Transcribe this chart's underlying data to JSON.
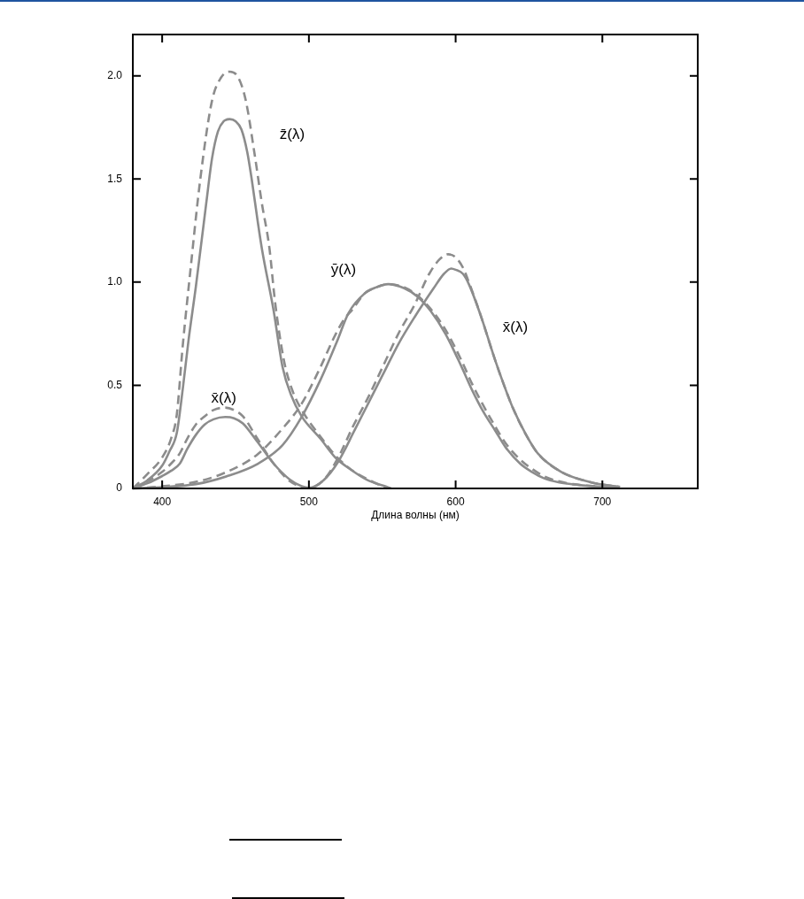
{
  "chart_data": {
    "type": "line",
    "xlabel": "Длина волны (нм)",
    "xlim": [
      380,
      765
    ],
    "xticks": [
      400,
      500,
      600,
      700
    ],
    "ylim": [
      0,
      2.2
    ],
    "yticks": [
      0,
      0.5,
      {
        "value": 1,
        "label": "1.0"
      },
      1.5,
      {
        "value": 2,
        "label": "2.0"
      }
    ],
    "grid": false,
    "legend": false,
    "marker": "none",
    "series": [
      {
        "color": "#8c8c8c",
        "line_style": "solid",
        "x": [
          380,
          390,
          400,
          406,
          412,
          417,
          423,
          429,
          435,
          443,
          449,
          455,
          465,
          476,
          487,
          495,
          500,
          510,
          520,
          531,
          541,
          551,
          561,
          572,
          585,
          592,
          597,
          600,
          605,
          609,
          617,
          627,
          633,
          639,
          648,
          656,
          672,
          692,
          712
        ],
        "values": [
          0,
          0.025,
          0.06,
          0.085,
          0.12,
          0.19,
          0.26,
          0.31,
          0.335,
          0.346,
          0.34,
          0.315,
          0.225,
          0.12,
          0.043,
          0.011,
          0.003,
          0.04,
          0.13,
          0.28,
          0.42,
          0.56,
          0.7,
          0.83,
          0.97,
          1.04,
          1.066,
          1.06,
          1.04,
          0.99,
          0.84,
          0.62,
          0.5,
          0.39,
          0.26,
          0.17,
          0.08,
          0.03,
          0.007
        ]
      },
      {
        "color": "#8c8c8c",
        "line_style": "solid",
        "x": [
          380,
          400,
          423,
          444,
          465,
          482,
          495,
          508,
          519,
          527,
          538,
          546,
          554,
          565,
          574,
          583,
          593,
          604,
          611,
          619,
          627,
          634,
          644,
          652,
          660,
          670,
          680,
          695,
          710
        ],
        "values": [
          0,
          0.006,
          0.021,
          0.059,
          0.119,
          0.21,
          0.346,
          0.528,
          0.71,
          0.85,
          0.945,
          0.975,
          0.99,
          0.97,
          0.93,
          0.86,
          0.75,
          0.59,
          0.48,
          0.37,
          0.28,
          0.2,
          0.12,
          0.08,
          0.05,
          0.03,
          0.02,
          0.01,
          0.003
        ]
      },
      {
        "color": "#8c8c8c",
        "line_style": "solid",
        "x": [
          380,
          390,
          400,
          405,
          410,
          414,
          418,
          423,
          430,
          434,
          438,
          442,
          446,
          450,
          454,
          458,
          461,
          465,
          468,
          476,
          482,
          488,
          495,
          508,
          518,
          529,
          540,
          551,
          556
        ],
        "values": [
          0,
          0.04,
          0.11,
          0.18,
          0.27,
          0.48,
          0.72,
          0.98,
          1.38,
          1.6,
          1.73,
          1.78,
          1.79,
          1.78,
          1.74,
          1.63,
          1.5,
          1.3,
          1.16,
          0.86,
          0.59,
          0.45,
          0.35,
          0.24,
          0.15,
          0.089,
          0.04,
          0.013,
          0
        ]
      },
      {
        "color": "#8c8c8c",
        "line_style": "dashed",
        "x": [
          380,
          390,
          400,
          406,
          412,
          417,
          423,
          429,
          435,
          443,
          449,
          455,
          465,
          476,
          487,
          495,
          500,
          510,
          520,
          530,
          541,
          551,
          561,
          572,
          582,
          589,
          595,
          600,
          605,
          609,
          617,
          627,
          633,
          639,
          648,
          656,
          672,
          692,
          712
        ],
        "values": [
          0,
          0.035,
          0.08,
          0.12,
          0.17,
          0.24,
          0.31,
          0.35,
          0.38,
          0.392,
          0.38,
          0.35,
          0.24,
          0.12,
          0.035,
          0.008,
          0.003,
          0.04,
          0.15,
          0.3,
          0.45,
          0.6,
          0.75,
          0.89,
          1.04,
          1.11,
          1.135,
          1.12,
          1.07,
          1.0,
          0.84,
          0.62,
          0.5,
          0.39,
          0.26,
          0.17,
          0.08,
          0.03,
          0.007
        ]
      },
      {
        "color": "#8c8c8c",
        "line_style": "dashed",
        "x": [
          380,
          400,
          425,
          444,
          465,
          482,
          495,
          508,
          517,
          524,
          530,
          538,
          546,
          554,
          565,
          574,
          583,
          593,
          604,
          611,
          619,
          627,
          634,
          644,
          652,
          660,
          670,
          680,
          695,
          710
        ],
        "values": [
          0,
          0.01,
          0.035,
          0.08,
          0.165,
          0.29,
          0.41,
          0.59,
          0.73,
          0.82,
          0.87,
          0.945,
          0.975,
          0.99,
          0.975,
          0.935,
          0.87,
          0.77,
          0.62,
          0.51,
          0.4,
          0.3,
          0.22,
          0.14,
          0.095,
          0.06,
          0.035,
          0.021,
          0.01,
          0.003
        ]
      },
      {
        "color": "#8c8c8c",
        "line_style": "dashed",
        "x": [
          380,
          390,
          400,
          406,
          410,
          414,
          419,
          426,
          434,
          440,
          446,
          452,
          457,
          463,
          468,
          473,
          477,
          483,
          489,
          496,
          508,
          518,
          529,
          540,
          553
        ],
        "values": [
          0,
          0.07,
          0.15,
          0.24,
          0.36,
          0.69,
          1.04,
          1.5,
          1.88,
          1.99,
          2.02,
          1.99,
          1.88,
          1.62,
          1.38,
          1.17,
          0.9,
          0.62,
          0.47,
          0.37,
          0.25,
          0.16,
          0.09,
          0.045,
          0
        ]
      }
    ],
    "annotations": [
      "z̄(λ)",
      "ȳ(λ)",
      "x̄(λ)",
      "x̄(λ)"
    ]
  }
}
